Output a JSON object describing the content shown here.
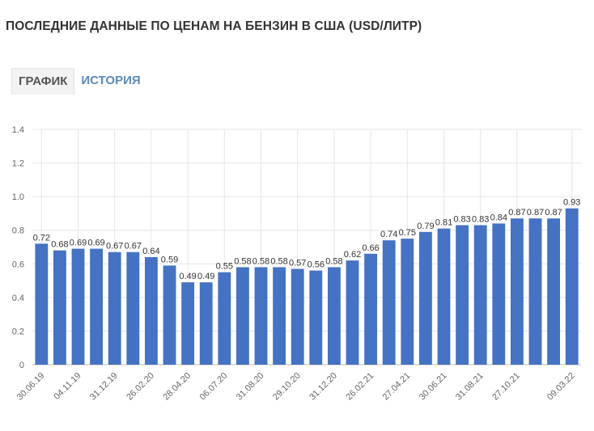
{
  "header": {
    "title": "ПОСЛЕДНИЕ ДАННЫЕ ПО ЦЕНАМ НА БЕНЗИН В США (USD/ЛИТР)"
  },
  "tabs": [
    {
      "label": "ГРАФИК",
      "active": true
    },
    {
      "label": "ИСТОРИЯ",
      "active": false
    }
  ],
  "chart_data": {
    "type": "bar",
    "color": "#4472c4",
    "grid": true,
    "ylim": [
      0,
      1.4
    ],
    "yticks": [
      "0",
      "0.2",
      "0.4",
      "0.6",
      "0.8",
      "1.0",
      "1.2",
      "1.4"
    ],
    "values": [
      0.72,
      0.68,
      0.69,
      0.69,
      0.67,
      0.67,
      0.64,
      0.59,
      0.49,
      0.49,
      0.55,
      0.58,
      0.58,
      0.58,
      0.57,
      0.56,
      0.58,
      0.62,
      0.66,
      0.74,
      0.75,
      0.79,
      0.81,
      0.83,
      0.83,
      0.84,
      0.87,
      0.87,
      0.87,
      0.93
    ],
    "xtick_labels": [
      {
        "index": 0,
        "label": "30.06.19"
      },
      {
        "index": 2,
        "label": "04.11.19"
      },
      {
        "index": 4,
        "label": "31.12.19"
      },
      {
        "index": 6,
        "label": "26.02.20"
      },
      {
        "index": 8,
        "label": "28.04.20"
      },
      {
        "index": 10,
        "label": "06.07.20"
      },
      {
        "index": 12,
        "label": "31.08.20"
      },
      {
        "index": 14,
        "label": "29.10.20"
      },
      {
        "index": 16,
        "label": "31.12.20"
      },
      {
        "index": 18,
        "label": "26.02.21"
      },
      {
        "index": 20,
        "label": "27.04.21"
      },
      {
        "index": 22,
        "label": "30.06.21"
      },
      {
        "index": 24,
        "label": "31.08.21"
      },
      {
        "index": 26,
        "label": "27.10.21"
      },
      {
        "index": 29,
        "label": "09.03.22"
      }
    ]
  }
}
